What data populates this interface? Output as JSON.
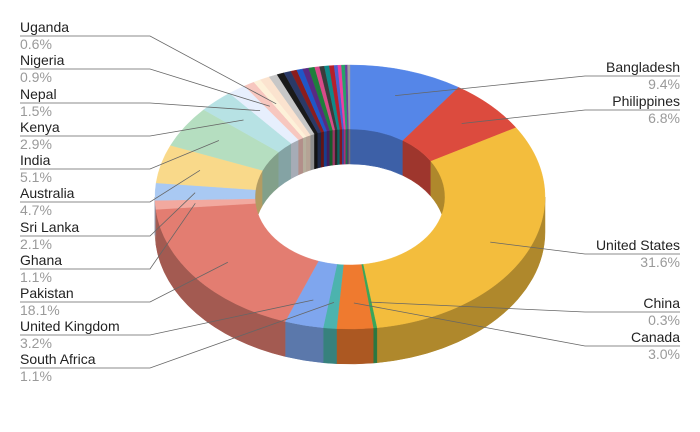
{
  "chart_data": {
    "type": "pie",
    "donut": true,
    "three_d": true,
    "categories": [
      "Bangladesh",
      "Philippines",
      "United States",
      "China",
      "Canada",
      "South Africa",
      "United Kingdom",
      "Pakistan",
      "Ghana",
      "Sri Lanka",
      "Australia",
      "India",
      "Kenya",
      "Nepal",
      "Nigeria",
      "Uganda",
      null,
      null,
      null,
      null,
      null,
      null,
      null,
      null,
      null,
      null,
      null,
      null,
      null,
      null,
      null,
      null,
      null
    ],
    "values": [
      9.4,
      6.8,
      31.6,
      0.3,
      3.0,
      1.1,
      3.2,
      18.1,
      1.1,
      2.1,
      4.7,
      5.1,
      2.9,
      1.5,
      0.9,
      0.6,
      0.8,
      0.7,
      0.6,
      0.6,
      0.5,
      0.5,
      0.5,
      0.5,
      0.4,
      0.4,
      0.4,
      0.4,
      0.3,
      0.3,
      0.3,
      0.2,
      0.2
    ],
    "value_labels": [
      "9.4%",
      "6.8%",
      "31.6%",
      "0.3%",
      "3.0%",
      "1.1%",
      "3.2%",
      "18.1%",
      "1.1%",
      "2.1%",
      "4.7%",
      "5.1%",
      "2.9%",
      "1.5%",
      "0.9%",
      "0.6%",
      null,
      null,
      null,
      null,
      null,
      null,
      null,
      null,
      null,
      null,
      null,
      null,
      null,
      null,
      null,
      null,
      null
    ],
    "colors": [
      "#5586e8",
      "#dc4b3e",
      "#f3bd3d",
      "#3aa65a",
      "#ef7a2f",
      "#4cb3ae",
      "#7fa6ee",
      "#e37d71",
      "#f2a99f",
      "#a9c9f3",
      "#f9d98a",
      "#b5dec0",
      "#b7e2e4",
      "#e7effd",
      "#f7c7bf",
      "#fdf1d9",
      "#fbe3cf",
      "#c7c7c7",
      "#1a1a1a",
      "#2b3a67",
      "#8b1d1d",
      "#1f57c7",
      "#5a2a82",
      "#1e7f3c",
      "#d94b8a",
      "#3b3b3b",
      "#0e8a8a",
      "#b6202a",
      "#4a61d1",
      "#ef3fa3",
      "#26a269",
      "#6b3fa0",
      "#a0a0a0"
    ]
  }
}
